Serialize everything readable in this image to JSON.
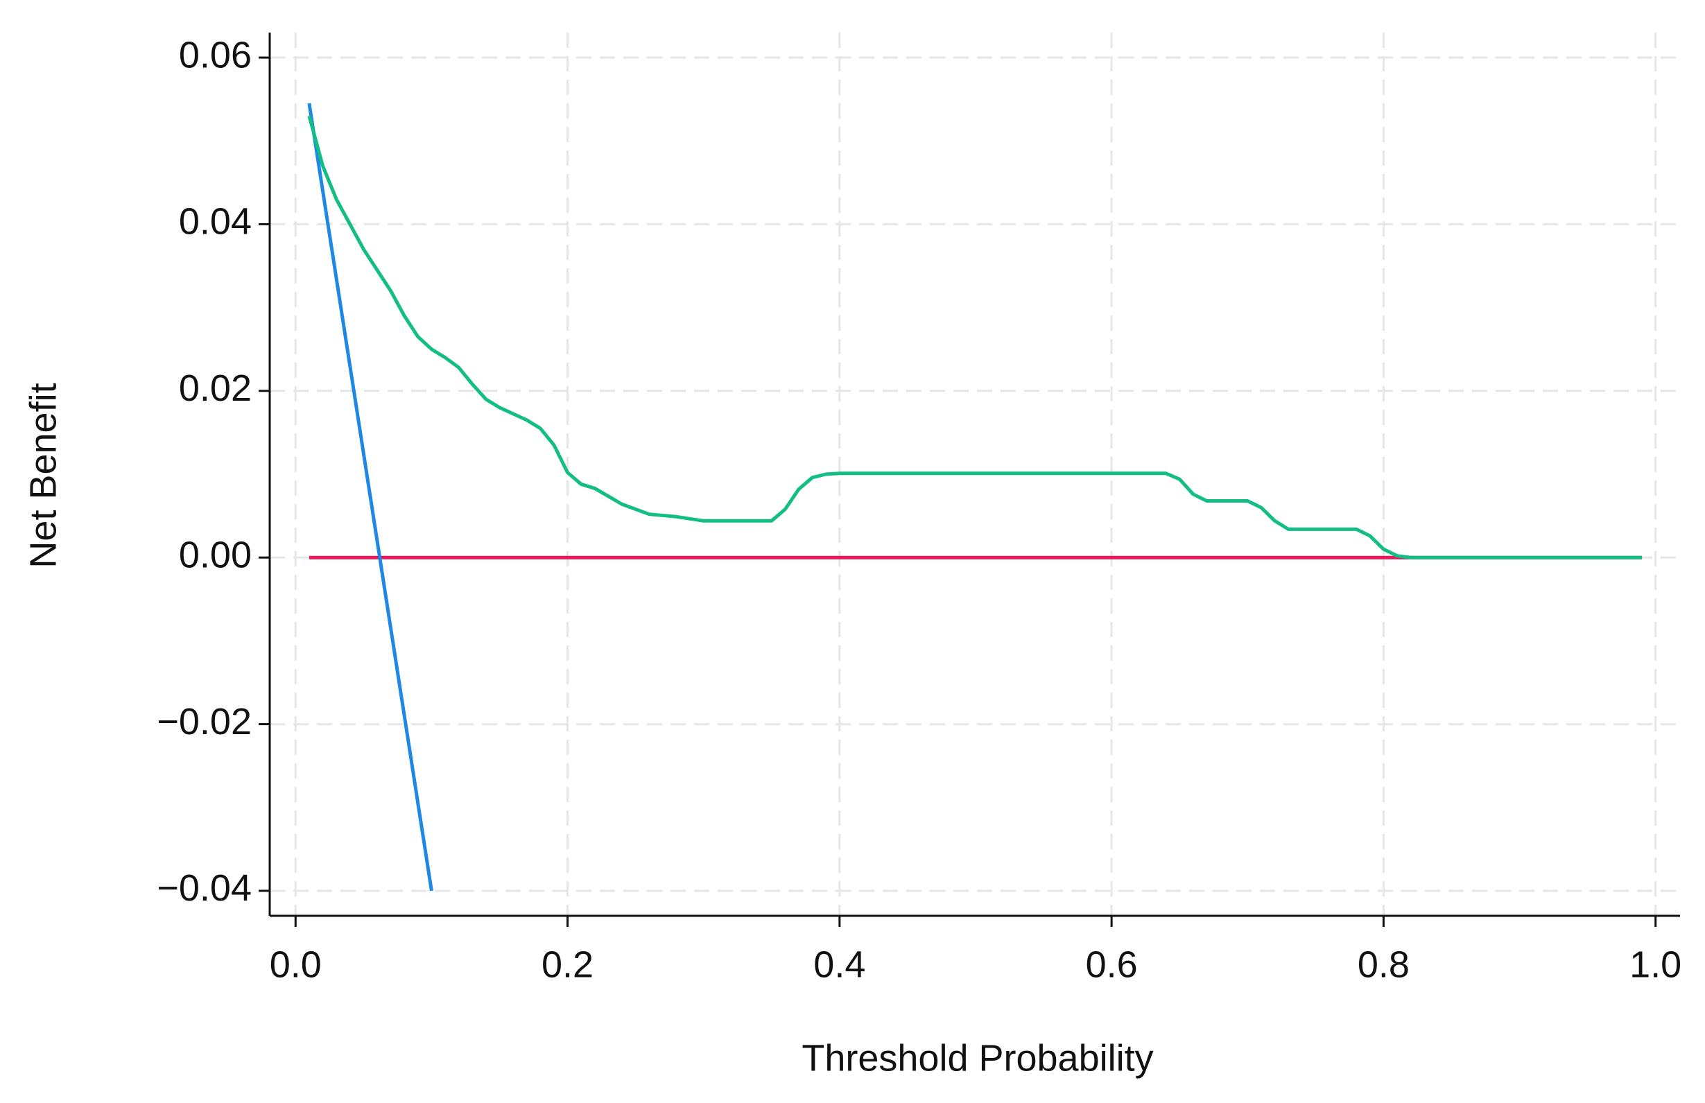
{
  "chart_data": {
    "type": "line",
    "xlabel": "Threshold Probability",
    "ylabel": "Net Benefit",
    "xlim": [
      -0.019,
      1.018
    ],
    "ylim": [
      -0.043,
      0.063
    ],
    "xticks": [
      {
        "value": 0,
        "label": "0.0"
      },
      0.2,
      0.4,
      0.6,
      0.8,
      {
        "value": 1,
        "label": "1.0"
      }
    ],
    "yticks": [
      {
        "value": -0.04,
        "label": "−0.04"
      },
      {
        "value": -0.02,
        "label": "−0.02"
      },
      {
        "value": 0,
        "label": "0.00"
      },
      0.02,
      0.04,
      0.06
    ],
    "grid": true,
    "series": [
      {
        "color": "#e8195a",
        "x": [
          0.01,
          0.99
        ],
        "values": [
          0,
          0
        ]
      },
      {
        "color": "#1e88e5",
        "x": [
          0.01,
          0.1
        ],
        "values": [
          0.0545,
          -0.04
        ]
      },
      {
        "color": "#12be85",
        "x": [
          0.01,
          0.02,
          0.03,
          0.05,
          0.07,
          0.08,
          0.09,
          0.1,
          0.11,
          0.12,
          0.13,
          0.14,
          0.15,
          0.17,
          0.18,
          0.19,
          0.2,
          0.21,
          0.22,
          0.24,
          0.26,
          0.28,
          0.3,
          0.35,
          0.36,
          0.37,
          0.38,
          0.39,
          0.4,
          0.64,
          0.65,
          0.66,
          0.67,
          0.7,
          0.71,
          0.72,
          0.73,
          0.78,
          0.79,
          0.8,
          0.81,
          0.82,
          0.99
        ],
        "values": [
          0.053,
          0.047,
          0.043,
          0.037,
          0.032,
          0.029,
          0.0265,
          0.025,
          0.024,
          0.0228,
          0.0208,
          0.019,
          0.018,
          0.0165,
          0.0155,
          0.0135,
          0.0102,
          0.0088,
          0.0083,
          0.0064,
          0.0052,
          0.0049,
          0.0044,
          0.0044,
          0.0058,
          0.0082,
          0.0096,
          0.01,
          0.0101,
          0.0101,
          0.0094,
          0.0076,
          0.0068,
          0.0068,
          0.006,
          0.0044,
          0.0034,
          0.0034,
          0.0026,
          0.001,
          0.0002,
          0,
          0
        ]
      }
    ]
  }
}
